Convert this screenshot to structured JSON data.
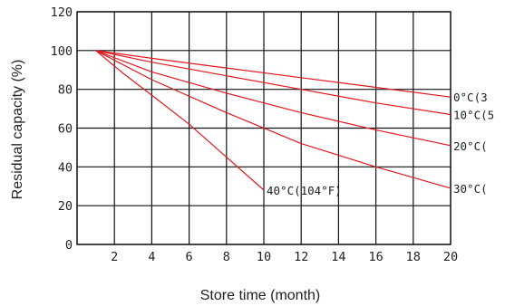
{
  "chart_data": {
    "type": "line",
    "xlabel": "Store time (month)",
    "ylabel": "Residual capacity (%)",
    "xlim": [
      0,
      20
    ],
    "ylim": [
      0,
      120
    ],
    "x_ticks": [
      0,
      2,
      4,
      6,
      8,
      10,
      12,
      14,
      16,
      18,
      20
    ],
    "x_tick_labels": [
      "",
      "2",
      "4",
      "6",
      "8",
      "10",
      "12",
      "14",
      "16",
      "18",
      "20"
    ],
    "y_ticks": [
      0,
      20,
      40,
      60,
      80,
      100,
      120
    ],
    "y_tick_labels": [
      "0",
      "20",
      "40",
      "60",
      "80",
      "100",
      "120"
    ],
    "grid": true,
    "line_color": "#e0191f",
    "series": [
      {
        "name": "0°C(3",
        "label": "0°C(3",
        "x": [
          1,
          4,
          8,
          12,
          16,
          20
        ],
        "y": [
          100,
          96,
          91,
          86,
          81,
          76
        ]
      },
      {
        "name": "10°C(5",
        "label": "10°C(5",
        "x": [
          1,
          4,
          8,
          12,
          16,
          20
        ],
        "y": [
          100,
          94,
          87,
          80,
          73,
          67
        ]
      },
      {
        "name": "20°C(",
        "label": "20°C(",
        "x": [
          1,
          4,
          8,
          12,
          16,
          20
        ],
        "y": [
          100,
          89,
          78,
          68,
          59,
          51
        ]
      },
      {
        "name": "30°C(",
        "label": "30°C(",
        "x": [
          1,
          4,
          8,
          12,
          16,
          20
        ],
        "y": [
          100,
          85,
          68,
          52,
          40,
          29
        ]
      },
      {
        "name": "40°C(104°F)",
        "label": "40°C(104°F)",
        "x": [
          1,
          2.5,
          4,
          6,
          8,
          10
        ],
        "y": [
          100,
          88,
          77,
          62,
          45,
          28
        ]
      }
    ]
  }
}
